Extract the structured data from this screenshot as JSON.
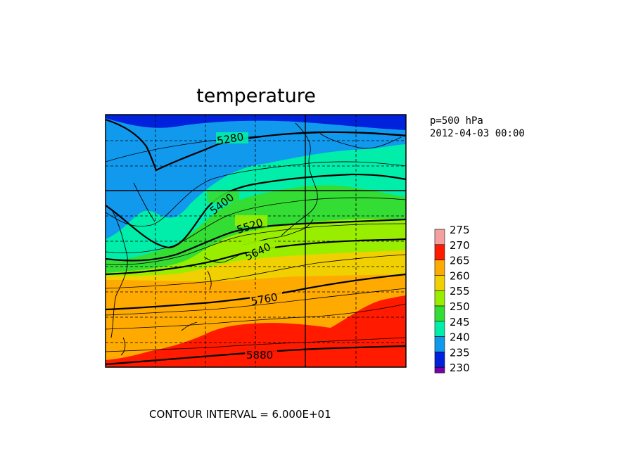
{
  "title": "temperature",
  "info": {
    "level": "p=500 hPa",
    "datetime": "2012-04-03 00:00"
  },
  "contour_interval_text": "CONTOUR INTERVAL = 6.000E+01",
  "contour_labels": [
    "5280",
    "5400",
    "5520",
    "5640",
    "5760",
    "5880"
  ],
  "legend": {
    "items": [
      {
        "label": "275",
        "color": "#f5a0a0"
      },
      {
        "label": "270",
        "color": "#ff1a00"
      },
      {
        "label": "265",
        "color": "#ffaa00"
      },
      {
        "label": "260",
        "color": "#f0d000"
      },
      {
        "label": "255",
        "color": "#99ee00"
      },
      {
        "label": "250",
        "color": "#33dd33"
      },
      {
        "label": "245",
        "color": "#00eeaa"
      },
      {
        "label": "240",
        "color": "#1199ee"
      },
      {
        "label": "235",
        "color": "#0022dd"
      },
      {
        "label": "230",
        "color": "#7700aa"
      }
    ]
  }
}
